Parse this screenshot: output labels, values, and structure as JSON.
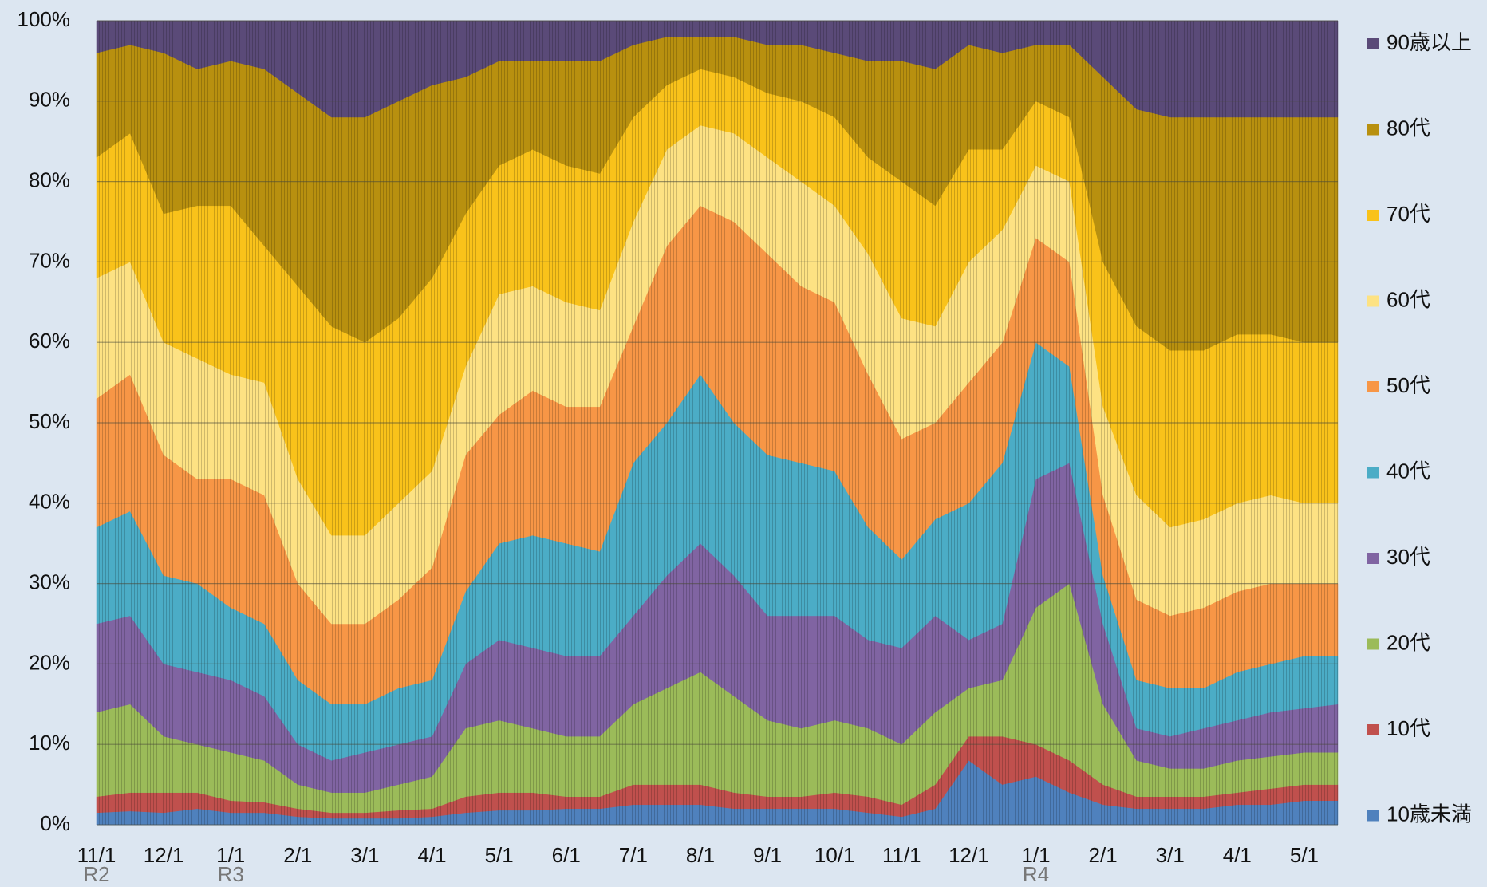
{
  "chart_data": {
    "type": "stacked_area",
    "categories": [
      "11/1",
      null,
      "12/1",
      null,
      "1/1",
      null,
      "2/1",
      null,
      "3/1",
      null,
      "4/1",
      null,
      "5/1",
      null,
      "6/1",
      null,
      "7/1",
      null,
      "8/1",
      null,
      "9/1",
      null,
      "10/1",
      null,
      "11/1",
      null,
      "12/1",
      null,
      "1/1",
      null,
      "2/1",
      null,
      "3/1",
      null,
      "4/1",
      null,
      "5/1",
      null
    ],
    "era_labels": [
      {
        "text": "R2",
        "category": 0
      },
      {
        "text": "R3",
        "category": 4
      },
      {
        "text": "R4",
        "category": 28
      }
    ],
    "ylim": [
      0,
      100
    ],
    "yticks": [
      {
        "value": 0,
        "label": "0%"
      },
      {
        "value": 10,
        "label": "10%"
      },
      {
        "value": 20,
        "label": "20%"
      },
      {
        "value": 30,
        "label": "30%"
      },
      {
        "value": 40,
        "label": "40%"
      },
      {
        "value": 50,
        "label": "50%"
      },
      {
        "value": 60,
        "label": "60%"
      },
      {
        "value": 70,
        "label": "70%"
      },
      {
        "value": 80,
        "label": "80%"
      },
      {
        "value": 90,
        "label": "90%"
      },
      {
        "value": 100,
        "label": "100%"
      }
    ],
    "grid": true,
    "legend": "right",
    "series": [
      {
        "name": "10歳未満",
        "color": "#4f81bd",
        "values": [
          1.5,
          1.7,
          1.5,
          2,
          1.5,
          1.5,
          1,
          0.8,
          0.8,
          0.8,
          1,
          1.5,
          1.8,
          1.8,
          2,
          2,
          2.5,
          2.5,
          2.5,
          2,
          2,
          2,
          2,
          1.5,
          1,
          2,
          8,
          5,
          6,
          4,
          2.5,
          2,
          2,
          2,
          2.5,
          2.5,
          3,
          3
        ]
      },
      {
        "name": "10代",
        "color": "#c0504d",
        "values": [
          2,
          2.3,
          2.5,
          2,
          1.5,
          1.3,
          1,
          0.7,
          0.7,
          1,
          1,
          2,
          2.2,
          2.2,
          1.5,
          1.5,
          2.5,
          2.5,
          2.5,
          2,
          1.5,
          1.5,
          2,
          2,
          1.5,
          3,
          3,
          6,
          4,
          4,
          2.5,
          1.5,
          1.5,
          1.5,
          1.5,
          2,
          2,
          2
        ]
      },
      {
        "name": "20代",
        "color": "#9bbb59",
        "values": [
          10.5,
          11,
          7,
          6,
          6,
          5.2,
          3,
          2.5,
          2.5,
          3.2,
          4,
          8.5,
          9,
          8,
          7.5,
          7.5,
          10,
          12,
          14,
          12,
          9.5,
          8.5,
          9,
          8.5,
          7.5,
          9,
          6,
          7,
          17,
          22,
          10,
          4.5,
          3.5,
          3.5,
          4,
          4,
          4,
          4
        ]
      },
      {
        "name": "30代",
        "color": "#8064a2",
        "values": [
          11,
          11,
          9,
          9,
          9,
          8,
          5,
          4,
          5,
          5,
          5,
          8,
          10,
          10,
          10,
          10,
          11,
          14,
          16,
          15,
          13,
          14,
          13,
          11,
          12,
          12,
          6,
          7,
          16,
          15,
          10,
          4,
          4,
          5,
          5,
          5.5,
          5.5,
          6
        ]
      },
      {
        "name": "40代",
        "color": "#4bacc6",
        "values": [
          12,
          13,
          11,
          11,
          9,
          9,
          8,
          7,
          6,
          7,
          7,
          9,
          12,
          14,
          14,
          13,
          19,
          19,
          21,
          19,
          20,
          19,
          18,
          14,
          11,
          12,
          17,
          20,
          17,
          12,
          6,
          6,
          6,
          5,
          6,
          6,
          6.5,
          6
        ]
      },
      {
        "name": "50代",
        "color": "#f79646",
        "values": [
          16,
          17,
          15,
          13,
          16,
          16,
          12,
          10,
          10,
          11,
          14,
          17,
          16,
          18,
          17,
          18,
          17,
          22,
          21,
          25,
          25,
          22,
          21,
          19,
          15,
          12,
          15,
          15,
          13,
          13,
          10,
          10,
          9,
          10,
          10,
          10,
          9,
          9
        ]
      },
      {
        "name": "60代",
        "color": "#fde283",
        "values": [
          15,
          14,
          14,
          15,
          13,
          14,
          13,
          11,
          11,
          12,
          12,
          11,
          15,
          13,
          13,
          12,
          13,
          12,
          10,
          11,
          12,
          13,
          12,
          15,
          15,
          12,
          15,
          14,
          9,
          10,
          11,
          13,
          11,
          11,
          11,
          11,
          10,
          10
        ]
      },
      {
        "name": "70代",
        "color": "#f9c21a",
        "values": [
          15,
          16,
          16,
          19,
          21,
          17,
          24,
          26,
          24,
          23,
          24,
          19,
          16,
          17,
          17,
          17,
          13,
          8,
          7,
          7,
          8,
          10,
          11,
          12,
          17,
          15,
          14,
          10,
          8,
          8,
          18,
          21,
          22,
          21,
          21,
          20,
          20,
          20
        ]
      },
      {
        "name": "80代",
        "color": "#b8900f",
        "values": [
          13,
          11,
          20,
          17,
          18,
          22,
          24,
          26,
          28,
          27,
          24,
          17,
          13,
          11,
          13,
          14,
          9,
          6,
          4,
          5,
          6,
          7,
          8,
          12,
          15,
          17,
          13,
          12,
          7,
          9,
          23,
          27,
          29,
          29,
          27,
          27,
          28,
          28
        ]
      },
      {
        "name": "90歳以上",
        "color": "#5a4a78",
        "values": [
          4,
          3,
          4,
          6,
          5,
          6,
          9,
          12,
          12,
          10,
          8,
          7,
          5,
          5,
          5,
          5,
          3,
          2,
          2,
          2,
          3,
          3,
          4,
          5,
          5,
          6,
          3,
          4,
          3,
          3,
          7,
          11,
          12,
          12,
          12,
          12,
          12,
          12
        ]
      }
    ]
  }
}
